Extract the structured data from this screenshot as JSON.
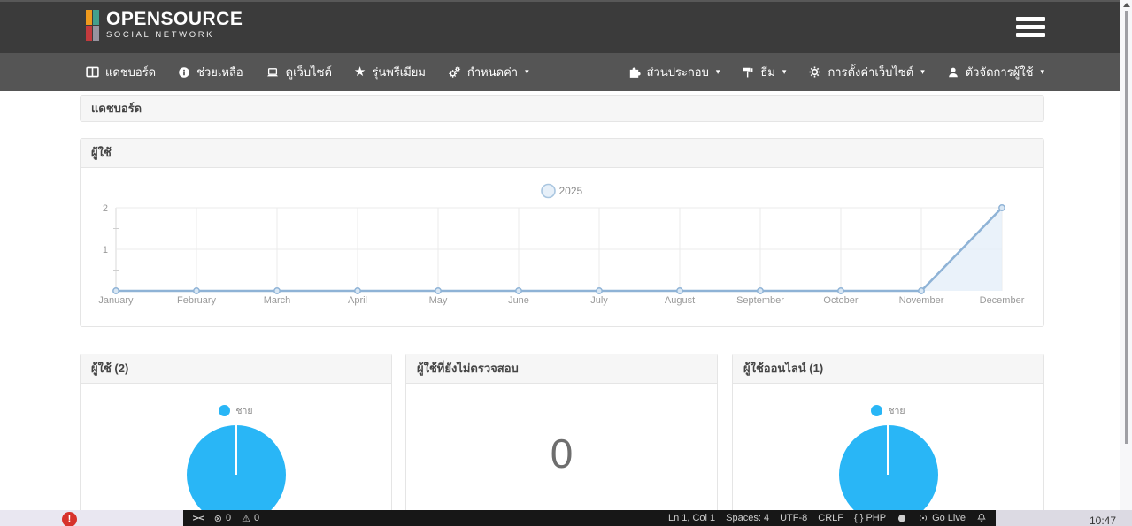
{
  "icons": {
    "caret_down": "▾",
    "error": "⊗",
    "warning": "⚠",
    "remote": "><",
    "star": "★"
  },
  "header": {
    "logo": {
      "title": "OPENSOURCE",
      "subtitle": "SOCIAL NETWORK",
      "block_colors": [
        "#ef9a1d",
        "#43a08c",
        "#c43a3d",
        "#97949f"
      ]
    }
  },
  "navbar": {
    "left_items": [
      {
        "icon": "columns-icon",
        "label": "แดชบอร์ด",
        "has_dropdown": false
      },
      {
        "icon": "info-circle-icon",
        "label": "ช่วยเหลือ",
        "has_dropdown": false
      },
      {
        "icon": "laptop-icon",
        "label": "ดูเว็บไซต์",
        "has_dropdown": false
      },
      {
        "icon": "star-icon",
        "label": "รุ่นพรีเมียม",
        "has_dropdown": false
      },
      {
        "icon": "cogs-icon",
        "label": "กำหนดค่า",
        "has_dropdown": true
      }
    ],
    "right_items": [
      {
        "icon": "puzzle-icon",
        "label": "ส่วนประกอบ",
        "has_dropdown": true
      },
      {
        "icon": "paint-roller-icon",
        "label": "ธีม",
        "has_dropdown": true
      },
      {
        "icon": "gear-icon",
        "label": "การตั้งค่าเว็บไซต์",
        "has_dropdown": true
      },
      {
        "icon": "user-icon",
        "label": "ตัวจัดการผู้ใช้",
        "has_dropdown": true
      }
    ]
  },
  "breadcrumb": {
    "label": "แดชบอร์ด"
  },
  "users_panel": {
    "title": "ผู้ใช้"
  },
  "chart_data": [
    {
      "type": "line",
      "title": "ผู้ใช้",
      "x": [
        "January",
        "February",
        "March",
        "April",
        "May",
        "June",
        "July",
        "August",
        "September",
        "October",
        "November",
        "December"
      ],
      "series": [
        {
          "name": "2025",
          "values": [
            0,
            0,
            0,
            0,
            0,
            0,
            0,
            0,
            0,
            0,
            0,
            2
          ]
        }
      ],
      "ylim": [
        0,
        2
      ],
      "yticks": [
        0,
        1,
        2
      ],
      "legend_position": "top",
      "grid": true,
      "line_color": "#8fb3d6",
      "fill_color": "#e3edf8",
      "point_fill": "#d9e7f4"
    },
    {
      "type": "pie",
      "title": "ผู้ใช้ (2)",
      "labels": [
        "ชาย"
      ],
      "values": [
        2
      ],
      "colors": [
        "#29b6f6"
      ]
    },
    {
      "type": "pie",
      "title": "ผู้ใช้ออนไลน์ (1)",
      "labels": [
        "ชาย"
      ],
      "values": [
        1
      ],
      "colors": [
        "#29b6f6"
      ]
    }
  ],
  "stat_panels": [
    {
      "title": "ผู้ใช้ (2)"
    },
    {
      "title": "ผู้ใช้ที่ยังไม่ตรวจสอบ",
      "value": "0"
    },
    {
      "title": "ผู้ใช้ออนไลน์ (1)"
    }
  ],
  "statusbar": {
    "errors": "0",
    "warnings": "0",
    "cursor": "Ln 1, Col 1",
    "spaces": "Spaces: 4",
    "encoding": "UTF-8",
    "eol": "CRLF",
    "language": "{ } PHP",
    "go_live": "Go Live"
  },
  "taskbar": {
    "clock": "10:47"
  }
}
